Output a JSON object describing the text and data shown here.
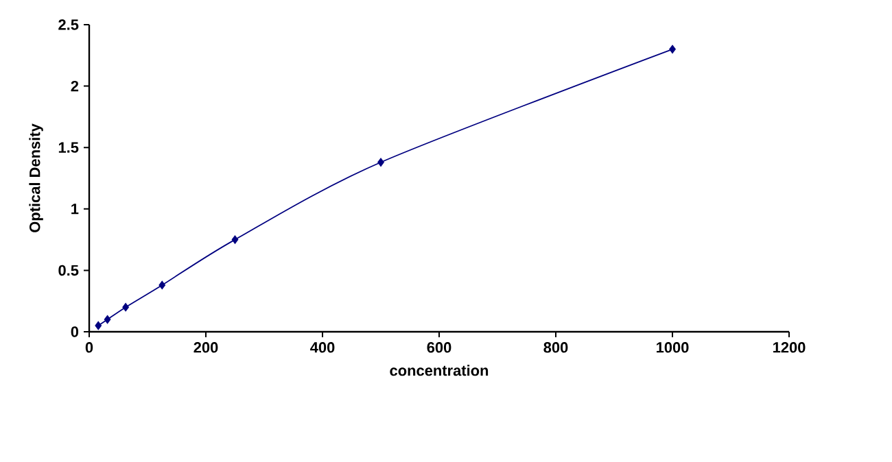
{
  "chart_data": {
    "type": "line",
    "xlabel": "concentration",
    "ylabel": "Optical Density",
    "x": [
      15.6,
      31.25,
      62.5,
      125,
      250,
      500,
      1000
    ],
    "series": [
      {
        "color": "#000080",
        "values": [
          0.05,
          0.1,
          0.2,
          0.38,
          0.75,
          1.38,
          2.3
        ]
      }
    ],
    "xlim": [
      0,
      1200
    ],
    "xticks": [
      0,
      200,
      400,
      600,
      800,
      1000,
      1200
    ],
    "ylim": [
      0,
      2.5
    ],
    "yticks": [
      0,
      0.5,
      1,
      1.5,
      2,
      2.5
    ],
    "marker": "diamond",
    "line_style": "solid",
    "grid": false
  }
}
